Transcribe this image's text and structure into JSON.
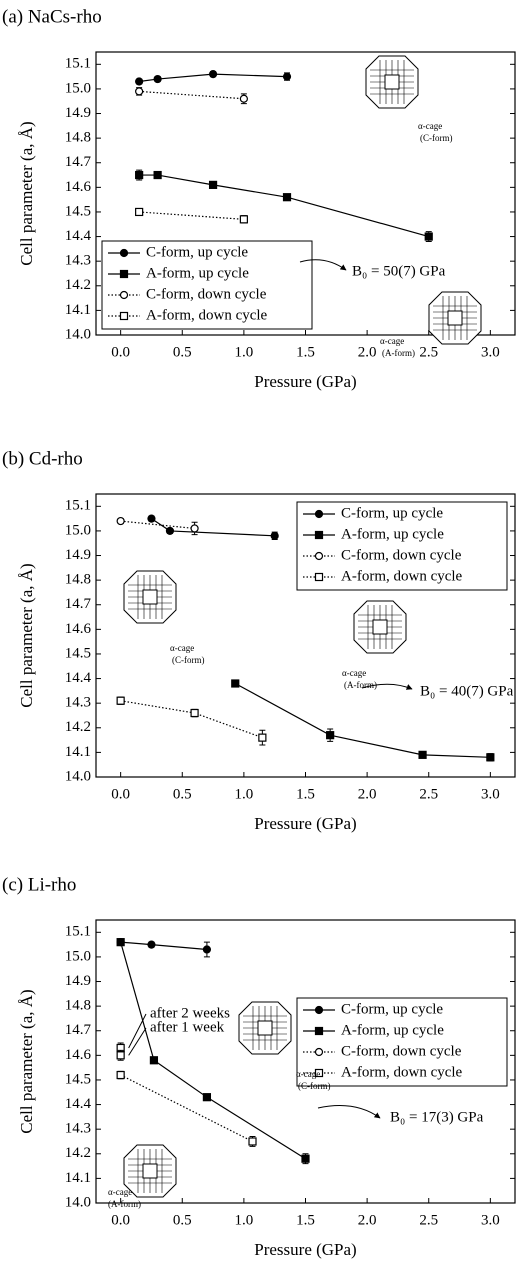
{
  "chart_data": [
    {
      "type": "line",
      "title": "(a) NaCs-rho",
      "x_label": "Pressure (GPa)",
      "y_label": "Cell parameter (a, Å)",
      "xlim": [
        -0.2,
        3.2
      ],
      "ylim": [
        14.0,
        15.15
      ],
      "xticks": [
        {
          "value": 0,
          "label": "0.0"
        },
        0.5,
        {
          "value": 1,
          "label": "1.0"
        },
        1.5,
        {
          "value": 2,
          "label": "2.0"
        },
        2.5,
        {
          "value": 3,
          "label": "3.0"
        }
      ],
      "yticks": [
        {
          "value": 14,
          "label": "14.0"
        },
        14.1,
        14.2,
        14.3,
        14.4,
        14.5,
        14.6,
        14.7,
        14.8,
        14.9,
        {
          "value": 15,
          "label": "15.0"
        },
        15.1
      ],
      "legend": "lower left",
      "annotations": [
        "B₀ = 50(7) GPa",
        "α-cage",
        "(C-form)",
        "α-cage",
        "(A-form)"
      ],
      "series": [
        {
          "name": "C-form, up cycle",
          "color": "#000000",
          "marker": "circle",
          "filled": true,
          "linestyle": "solid",
          "x": [
            0.15,
            0.3,
            0.75,
            1.35
          ],
          "values": [
            15.03,
            15.04,
            15.06,
            15.05
          ],
          "errors": [
            0.01,
            0.01,
            0.01,
            0.015
          ]
        },
        {
          "name": "A-form, up cycle",
          "color": "#000000",
          "marker": "square",
          "filled": true,
          "linestyle": "solid",
          "x": [
            0.15,
            0.3,
            0.75,
            1.35,
            2.5
          ],
          "values": [
            14.65,
            14.65,
            14.61,
            14.56,
            14.4
          ],
          "errors": [
            0.02,
            0.01,
            0.01,
            0.01,
            0.02
          ]
        },
        {
          "name": "C-form, down cycle",
          "color": "#000000",
          "marker": "circle",
          "filled": false,
          "linestyle": "dotted",
          "x": [
            0.15,
            1.0
          ],
          "values": [
            14.99,
            14.96
          ],
          "errors": [
            0.015,
            0.02
          ]
        },
        {
          "name": "A-form, down cycle",
          "color": "#000000",
          "marker": "square",
          "filled": false,
          "linestyle": "dotted",
          "x": [
            0.15,
            1.0
          ],
          "values": [
            14.5,
            14.47
          ],
          "errors": [
            0.01,
            0.015
          ]
        }
      ]
    },
    {
      "type": "line",
      "title": "(b) Cd-rho",
      "x_label": "Pressure (GPa)",
      "y_label": "Cell parameter (a, Å)",
      "xlim": [
        -0.2,
        3.2
      ],
      "ylim": [
        14.0,
        15.15
      ],
      "xticks": [
        {
          "value": 0,
          "label": "0.0"
        },
        0.5,
        {
          "value": 1,
          "label": "1.0"
        },
        1.5,
        {
          "value": 2,
          "label": "2.0"
        },
        2.5,
        {
          "value": 3,
          "label": "3.0"
        }
      ],
      "yticks": [
        {
          "value": 14,
          "label": "14.0"
        },
        14.1,
        14.2,
        14.3,
        14.4,
        14.5,
        14.6,
        14.7,
        14.8,
        14.9,
        {
          "value": 15,
          "label": "15.0"
        },
        15.1
      ],
      "legend": "upper right",
      "annotations": [
        "B₀ = 40(7) GPa",
        "α-cage",
        "(C-form)",
        "α-cage",
        "(A-form)"
      ],
      "series": [
        {
          "name": "C-form, up cycle",
          "color": "#000000",
          "marker": "circle",
          "filled": true,
          "linestyle": "solid",
          "x": [
            0.25,
            0.4,
            1.25
          ],
          "values": [
            15.05,
            15.0,
            14.98
          ],
          "errors": [
            0.01,
            0.01,
            0.015
          ]
        },
        {
          "name": "A-form, up cycle",
          "color": "#000000",
          "marker": "square",
          "filled": true,
          "linestyle": "solid",
          "x": [
            0.93,
            1.7,
            2.45,
            3.0
          ],
          "values": [
            14.38,
            14.17,
            14.09,
            14.08
          ],
          "errors": [
            0.01,
            0.025,
            0.01,
            0.015
          ]
        },
        {
          "name": "C-form, down cycle",
          "color": "#000000",
          "marker": "circle",
          "filled": false,
          "linestyle": "dotted",
          "x": [
            0.0,
            0.6
          ],
          "values": [
            15.04,
            15.01
          ],
          "errors": [
            0.01,
            0.025
          ]
        },
        {
          "name": "A-form, down cycle",
          "color": "#000000",
          "marker": "square",
          "filled": false,
          "linestyle": "dotted",
          "x": [
            0.0,
            0.6,
            1.15
          ],
          "values": [
            14.31,
            14.26,
            14.16
          ],
          "errors": [
            0.015,
            0.015,
            0.03
          ]
        }
      ]
    },
    {
      "type": "line",
      "title": "(c) Li-rho",
      "x_label": "Pressure (GPa)",
      "y_label": "Cell parameter (a, Å)",
      "xlim": [
        -0.2,
        3.2
      ],
      "ylim": [
        14.0,
        15.15
      ],
      "xticks": [
        {
          "value": 0,
          "label": "0.0"
        },
        0.5,
        {
          "value": 1,
          "label": "1.0"
        },
        1.5,
        {
          "value": 2,
          "label": "2.0"
        },
        2.5,
        {
          "value": 3,
          "label": "3.0"
        }
      ],
      "yticks": [
        {
          "value": 14,
          "label": "14.0"
        },
        14.1,
        14.2,
        14.3,
        14.4,
        14.5,
        14.6,
        14.7,
        14.8,
        14.9,
        {
          "value": 15,
          "label": "15.0"
        },
        15.1
      ],
      "legend": "center right",
      "annotations": [
        "B₀ = 17(3) GPa",
        "α-cage",
        "(C-form)",
        "α-cage",
        "(A-form)",
        "after 2 weeks",
        "after 1 week"
      ],
      "extra_points": {
        "x": [
          0.0,
          0.0
        ],
        "values": [
          14.63,
          14.6
        ],
        "errors": [
          0.02,
          0.02
        ]
      },
      "series": [
        {
          "name": "C-form, up cycle",
          "color": "#000000",
          "marker": "circle",
          "filled": true,
          "linestyle": "solid",
          "x": [
            0.0,
            0.25,
            0.7
          ],
          "values": [
            15.06,
            15.05,
            15.03
          ],
          "errors": [
            0.005,
            0.01,
            0.03
          ]
        },
        {
          "name": "A-form, up cycle",
          "color": "#000000",
          "marker": "square",
          "filled": true,
          "linestyle": "solid",
          "x": [
            0.0,
            0.27,
            0.7,
            1.5
          ],
          "values": [
            15.06,
            14.58,
            14.43,
            14.18
          ],
          "errors": [
            0.005,
            0.01,
            0.01,
            0.02
          ]
        },
        {
          "name": "C-form, down cycle",
          "color": "#000000",
          "marker": "circle",
          "filled": false,
          "linestyle": "dotted",
          "x": [],
          "values": [],
          "errors": []
        },
        {
          "name": "A-form, down cycle",
          "color": "#000000",
          "marker": "square",
          "filled": false,
          "linestyle": "dotted",
          "x": [
            0.0,
            1.07
          ],
          "values": [
            14.52,
            14.25
          ],
          "errors": [
            0.015,
            0.02
          ]
        }
      ]
    }
  ]
}
